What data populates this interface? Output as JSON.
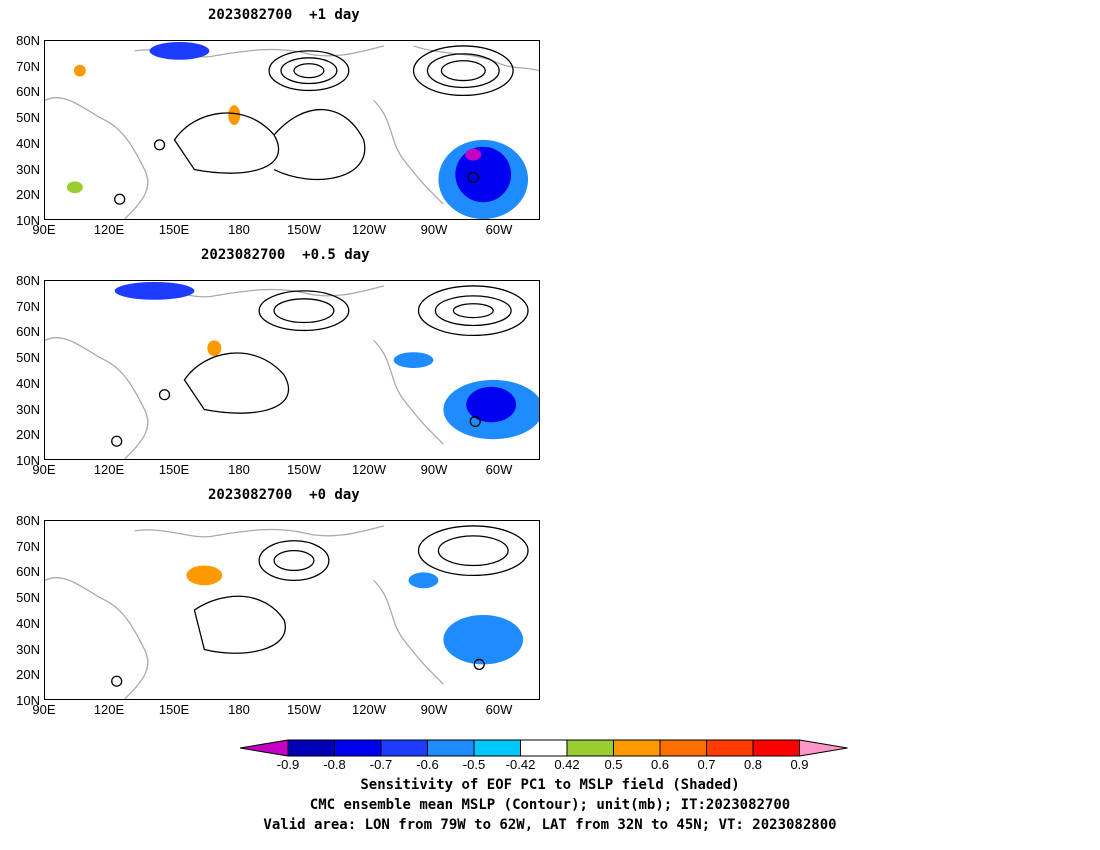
{
  "panels": [
    {
      "title": "2023082700  +1 day"
    },
    {
      "title": "2023082700  +0.5 day"
    },
    {
      "title": "2023082700  +0 day"
    }
  ],
  "lat_ticks": [
    "80N",
    "70N",
    "60N",
    "50N",
    "40N",
    "30N",
    "20N",
    "10N"
  ],
  "lon_ticks": [
    "90E",
    "120E",
    "150E",
    "180",
    "150W",
    "120W",
    "90W",
    "60W"
  ],
  "contour_levels": [
    "1000",
    "1008",
    "1016"
  ],
  "colorbar": {
    "colors": [
      "#c400c4",
      "#0000b4",
      "#0000f0",
      "#1e3cff",
      "#1e8cff",
      "#00c8ff",
      "#ffffff",
      "#9acd32",
      "#ff9900",
      "#ff6e00",
      "#ff3c00",
      "#ff0000",
      "#ff96c8"
    ],
    "tick_labels": [
      "-0.9",
      "-0.8",
      "-0.7",
      "-0.6",
      "-0.5",
      "-0.42",
      "0.42",
      "0.5",
      "0.6",
      "0.7",
      "0.8",
      "0.9"
    ]
  },
  "captions": [
    "Sensitivity of EOF PC1 to MSLP field (Shaded)",
    "CMC ensemble mean MSLP (Contour); unit(mb); IT:2023082700",
    "Valid area: LON from 79W to 62W, LAT from 32N to 45N; VT: 2023082800"
  ]
}
